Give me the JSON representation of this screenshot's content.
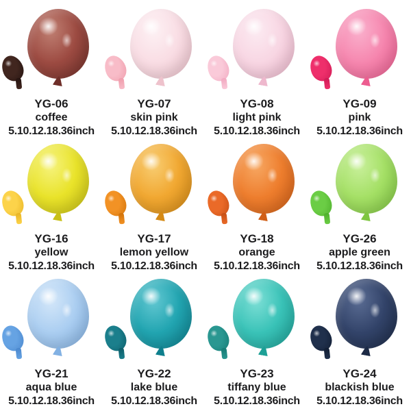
{
  "page": {
    "background_color": "#ffffff",
    "text_color": "#1c1c1e"
  },
  "catalog": {
    "products": [
      {
        "code": "YG-06",
        "name": "coffee",
        "sizes": "5.10.12.18.36inch",
        "colors": {
          "main_light": "#c08073",
          "main_base": "#9d4b42",
          "main_dark": "#6f2f29",
          "small_base": "#41261f",
          "small_dark": "#241310"
        }
      },
      {
        "code": "YG-07",
        "name": "skin pink",
        "sizes": "5.10.12.18.36inch",
        "colors": {
          "main_light": "#fdf1f4",
          "main_base": "#f9dde4",
          "main_dark": "#eec2cc",
          "small_base": "#f8bcc8",
          "small_dark": "#ef9cab"
        }
      },
      {
        "code": "YG-08",
        "name": "light pink",
        "sizes": "5.10.12.18.36inch",
        "colors": {
          "main_light": "#fcebf2",
          "main_base": "#f8d6e3",
          "main_dark": "#eeb8cd",
          "small_base": "#facad9",
          "small_dark": "#f1a8c0"
        }
      },
      {
        "code": "YG-09",
        "name": "pink",
        "sizes": "5.10.12.18.36inch",
        "colors": {
          "main_light": "#fab1cd",
          "main_base": "#f687af",
          "main_dark": "#ed5d90",
          "small_base": "#ee2f6b",
          "small_dark": "#cf1a55"
        }
      },
      {
        "code": "YG-16",
        "name": "yellow",
        "sizes": "5.10.12.18.36inch",
        "colors": {
          "main_light": "#f6f37e",
          "main_base": "#e9e32a",
          "main_dark": "#c8c016",
          "small_base": "#fcd34a",
          "small_dark": "#e8b424"
        }
      },
      {
        "code": "YG-17",
        "name": "lemon yellow",
        "sizes": "5.10.12.18.36inch",
        "colors": {
          "main_light": "#f8cd72",
          "main_base": "#f1a832",
          "main_dark": "#d58a15",
          "small_base": "#f29225",
          "small_dark": "#d17208"
        }
      },
      {
        "code": "YG-18",
        "name": "orange",
        "sizes": "5.10.12.18.36inch",
        "colors": {
          "main_light": "#f7a863",
          "main_base": "#ee7e2e",
          "main_dark": "#d15f17",
          "small_base": "#ea6a28",
          "small_dark": "#c54e14"
        }
      },
      {
        "code": "YG-26",
        "name": "apple green",
        "sizes": "5.10.12.18.36inch",
        "colors": {
          "main_light": "#c9f09c",
          "main_base": "#a5e066",
          "main_dark": "#7fc641",
          "small_base": "#6bcd45",
          "small_dark": "#4daf2b"
        }
      },
      {
        "code": "YG-21",
        "name": "aqua blue",
        "sizes": "5.10.12.18.36inch",
        "colors": {
          "main_light": "#d4e7f9",
          "main_base": "#abcef1",
          "main_dark": "#82b1e3",
          "small_base": "#66a3e3",
          "small_dark": "#4a87cd"
        }
      },
      {
        "code": "YG-22",
        "name": "lake blue",
        "sizes": "5.10.12.18.36inch",
        "colors": {
          "main_light": "#63c8d2",
          "main_base": "#22a5b1",
          "main_dark": "#0e7f8d",
          "small_base": "#1b7f8c",
          "small_dark": "#0d5d69"
        }
      },
      {
        "code": "YG-23",
        "name": "tiffany blue",
        "sizes": "5.10.12.18.36inch",
        "colors": {
          "main_light": "#7edfd6",
          "main_base": "#3ac3b8",
          "main_dark": "#1da096",
          "small_base": "#2a9791",
          "small_dark": "#167a74"
        }
      },
      {
        "code": "YG-24",
        "name": "blackish blue",
        "sizes": "5.10.12.18.36inch",
        "colors": {
          "main_light": "#5a6c93",
          "main_base": "#33446a",
          "main_dark": "#1c2a45",
          "small_base": "#20304c",
          "small_dark": "#111d33"
        }
      }
    ]
  }
}
